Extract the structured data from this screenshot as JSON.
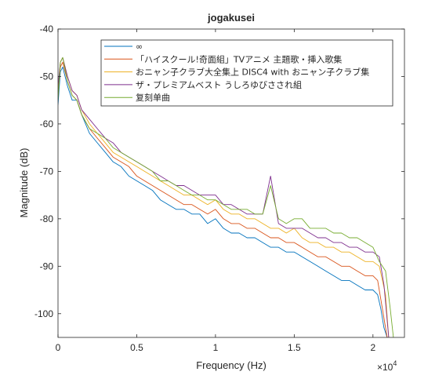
{
  "chart_data": {
    "type": "line",
    "title": "jogakusei",
    "xlabel": "Frequency (Hz)",
    "ylabel": "Magnitude (dB)",
    "x_exponent_label": "×10",
    "x_exponent_power": "4",
    "xlim": [
      0,
      22000
    ],
    "ylim": [
      -105,
      -40
    ],
    "xticks": [
      0,
      5000,
      10000,
      15000,
      20000
    ],
    "xtick_labels": [
      "0",
      "0.5",
      "1",
      "1.5",
      "2"
    ],
    "yticks": [
      -100,
      -90,
      -80,
      -70,
      -60,
      -50,
      -40
    ],
    "ytick_labels": [
      "-100",
      "-90",
      "-80",
      "-70",
      "-60",
      "-50",
      "-40"
    ],
    "grid": false,
    "legend_position": "top-right",
    "colors": [
      "#0072BD",
      "#D95319",
      "#EDB120",
      "#7E2F8E",
      "#77AC30"
    ],
    "series": [
      {
        "name": "∞",
        "x": [
          0,
          150,
          300,
          600,
          900,
          1200,
          1500,
          2000,
          2500,
          3000,
          3500,
          4000,
          4500,
          5000,
          5500,
          6000,
          6500,
          7000,
          7500,
          8000,
          8500,
          9000,
          9500,
          10000,
          10500,
          11000,
          11500,
          12000,
          12500,
          13000,
          13500,
          14000,
          14500,
          15000,
          15500,
          16000,
          16500,
          17000,
          17500,
          18000,
          18500,
          19000,
          19500,
          20000,
          20300,
          20500,
          20700,
          20900
        ],
        "values": [
          -56,
          -49,
          -48,
          -52,
          -55,
          -55,
          -58,
          -62,
          -64,
          -66,
          -68,
          -69,
          -71,
          -72,
          -73,
          -74,
          -76,
          -77,
          -78,
          -78,
          -79,
          -79,
          -81,
          -80,
          -82,
          -83,
          -83,
          -84,
          -84,
          -85,
          -86,
          -86,
          -87,
          -87,
          -88,
          -89,
          -90,
          -91,
          -92,
          -93,
          -93,
          -94,
          -95,
          -95,
          -96,
          -99,
          -103,
          -105
        ]
      },
      {
        "name": "「ハイスクール!奇面組」TVアニメ 主題歌・挿入歌集",
        "x": [
          0,
          150,
          300,
          600,
          900,
          1200,
          1500,
          2000,
          2500,
          3000,
          3500,
          4000,
          4500,
          5000,
          5500,
          6000,
          6500,
          7000,
          7500,
          8000,
          8500,
          9000,
          9500,
          10000,
          10500,
          11000,
          11500,
          12000,
          12500,
          13000,
          13500,
          14000,
          14500,
          15000,
          15500,
          16000,
          16500,
          17000,
          17500,
          18000,
          18500,
          19000,
          19500,
          20000,
          20300,
          20600,
          20900
        ],
        "values": [
          -54,
          -48,
          -47,
          -51,
          -54,
          -55,
          -58,
          -61,
          -63,
          -65,
          -67,
          -68,
          -69,
          -71,
          -72,
          -73,
          -74,
          -75,
          -76,
          -77,
          -77,
          -78,
          -79,
          -78,
          -80,
          -81,
          -81,
          -82,
          -82,
          -83,
          -84,
          -84,
          -85,
          -85,
          -86,
          -87,
          -88,
          -88,
          -89,
          -90,
          -90,
          -91,
          -92,
          -92,
          -93,
          -99,
          -105
        ]
      },
      {
        "name": "おニャン子クラブ大全集上 DISC4 with おニャン子クラブ集",
        "x": [
          0,
          150,
          300,
          600,
          900,
          1200,
          1500,
          2000,
          2500,
          3000,
          3500,
          4000,
          4500,
          5000,
          5500,
          6000,
          6500,
          7000,
          7500,
          8000,
          8500,
          9000,
          9500,
          10000,
          10500,
          11000,
          11500,
          12000,
          12500,
          13000,
          13500,
          14000,
          14500,
          15000,
          15500,
          16000,
          16500,
          17000,
          17500,
          18000,
          18500,
          19000,
          19500,
          20000,
          20400,
          20800,
          21000
        ],
        "values": [
          -53,
          -47,
          -46,
          -50,
          -53,
          -54,
          -57,
          -60,
          -62,
          -64,
          -66,
          -67,
          -68,
          -69,
          -70,
          -71,
          -72,
          -73,
          -74,
          -75,
          -75,
          -76,
          -77,
          -76,
          -78,
          -79,
          -79,
          -80,
          -80,
          -81,
          -82,
          -82,
          -83,
          -82,
          -84,
          -85,
          -85,
          -86,
          -86,
          -87,
          -87,
          -88,
          -89,
          -89,
          -90,
          -96,
          -105
        ]
      },
      {
        "name": "ザ・プレミアムベスト うしろゆびさされ組",
        "x": [
          0,
          150,
          300,
          600,
          900,
          1200,
          1500,
          2000,
          2500,
          3000,
          3500,
          4000,
          4500,
          5000,
          5500,
          6000,
          6500,
          7000,
          7500,
          8000,
          8500,
          9000,
          9500,
          10000,
          10500,
          11000,
          11500,
          12000,
          12500,
          13000,
          13500,
          14000,
          14500,
          15000,
          15500,
          16000,
          16500,
          17000,
          17500,
          18000,
          18500,
          19000,
          19500,
          20000,
          20400,
          20700,
          21000
        ],
        "values": [
          -52,
          -47,
          -46,
          -50,
          -53,
          -54,
          -57,
          -59,
          -61,
          -63,
          -64,
          -66,
          -67,
          -68,
          -69,
          -70,
          -71,
          -72,
          -73,
          -73,
          -74,
          -75,
          -75,
          -75,
          -77,
          -77,
          -78,
          -79,
          -79,
          -79,
          -71,
          -81,
          -82,
          -82,
          -82,
          -83,
          -84,
          -84,
          -85,
          -85,
          -86,
          -86,
          -87,
          -87,
          -88,
          -94,
          -105
        ]
      },
      {
        "name": "复刻单曲",
        "x": [
          0,
          150,
          300,
          600,
          900,
          1200,
          1500,
          2000,
          2500,
          3000,
          3500,
          4000,
          4500,
          5000,
          5500,
          6000,
          6500,
          7000,
          7500,
          8000,
          8500,
          9000,
          9500,
          10000,
          10500,
          11000,
          11500,
          12000,
          12500,
          13000,
          13500,
          14000,
          14500,
          15000,
          15500,
          16000,
          16500,
          17000,
          17500,
          18000,
          18500,
          19000,
          19500,
          20000,
          20400,
          20800,
          21100,
          21300
        ],
        "values": [
          -55,
          -47,
          -46,
          -51,
          -54,
          -55,
          -58,
          -61,
          -62,
          -63,
          -65,
          -66,
          -67,
          -68,
          -69,
          -70,
          -72,
          -72,
          -73,
          -74,
          -75,
          -75,
          -76,
          -76,
          -77,
          -78,
          -78,
          -78,
          -79,
          -79,
          -73,
          -80,
          -81,
          -80,
          -80,
          -82,
          -82,
          -82,
          -83,
          -83,
          -84,
          -84,
          -85,
          -86,
          -89,
          -91,
          -99,
          -105
        ]
      }
    ]
  }
}
